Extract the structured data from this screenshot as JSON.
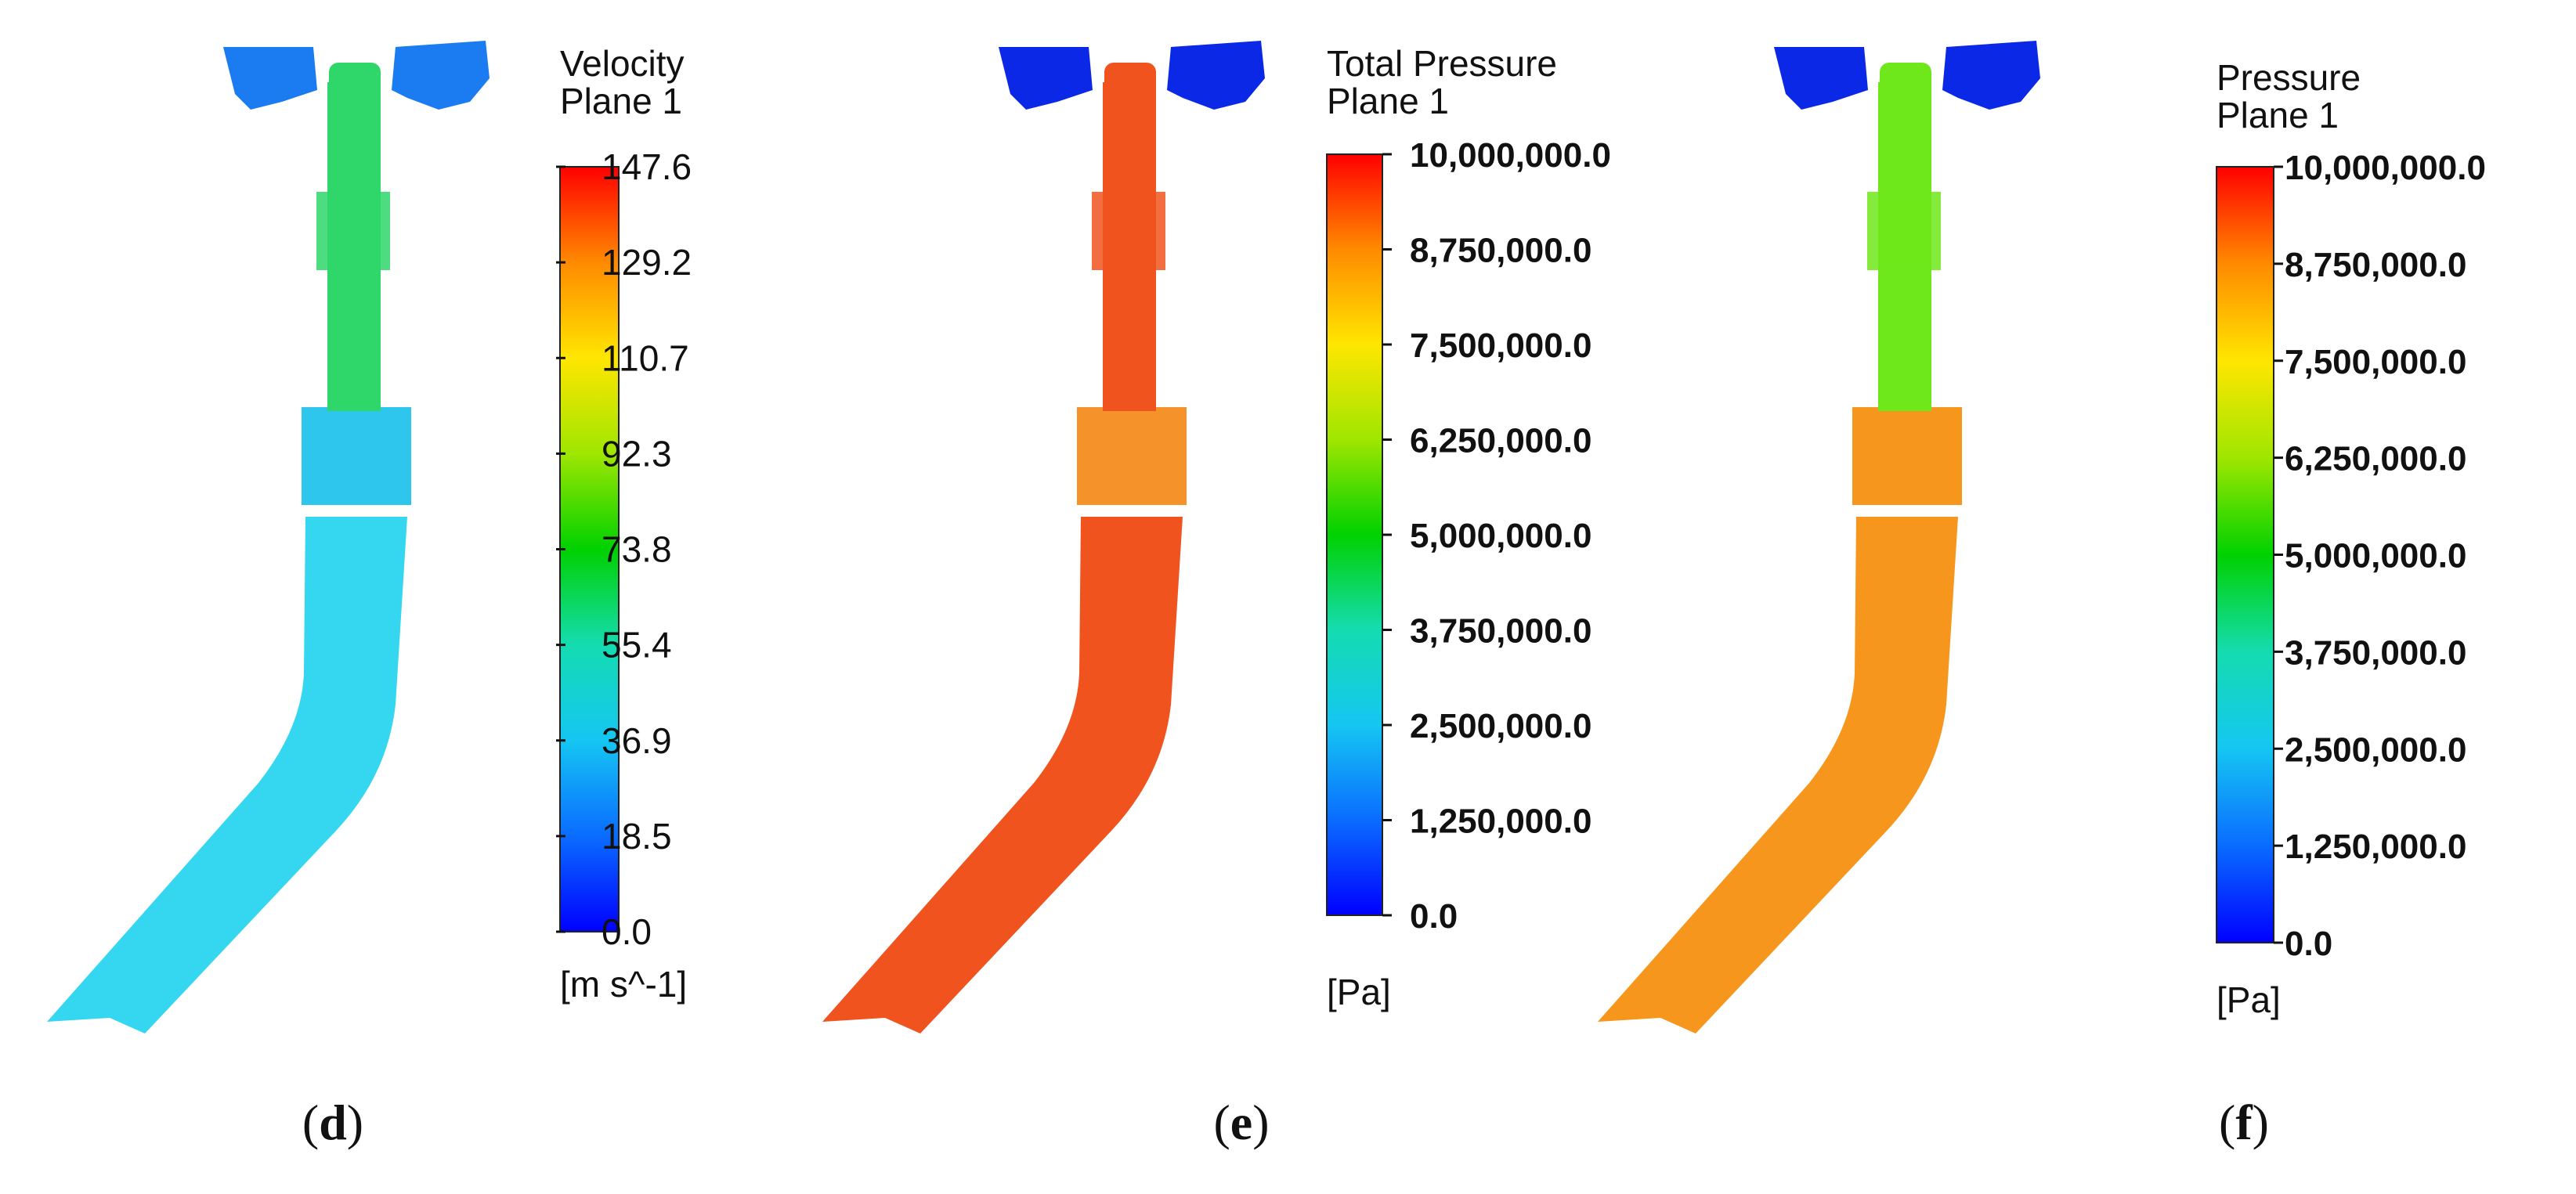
{
  "panels": [
    {
      "id": "d",
      "caption": "d",
      "title": "Velocity",
      "subtitle": "Plane 1",
      "unit": "[m s^-1]",
      "ticks": [
        "147.6",
        "129.2",
        "110.7",
        "92.3",
        "73.8",
        "55.4",
        "36.9",
        "18.5",
        "0.0"
      ],
      "bold_ticks": false,
      "field": {
        "head": "#1a7cf0",
        "throat": "#2fd66a",
        "collar": "#2fc6ee",
        "pipe": "#35d7f0"
      }
    },
    {
      "id": "e",
      "caption": "e",
      "title": "Total Pressure",
      "subtitle": "Plane 1",
      "unit": "[Pa]",
      "ticks": [
        "10,000,000.0",
        "8,750,000.0",
        "7,500,000.0",
        "6,250,000.0",
        "5,000,000.0",
        "3,750,000.0",
        "2,500,000.0",
        "1,250,000.0",
        "0.0"
      ],
      "bold_ticks": true,
      "field": {
        "head": "#0a28e6",
        "throat": "#f0531e",
        "collar": "#f5922a",
        "pipe": "#f0531e"
      }
    },
    {
      "id": "f",
      "caption": "f",
      "title": "Pressure",
      "subtitle": "Plane 1",
      "unit": "[Pa]",
      "ticks": [
        "10,000,000.0",
        "8,750,000.0",
        "7,500,000.0",
        "6,250,000.0",
        "5,000,000.0",
        "3,750,000.0",
        "2,500,000.0",
        "1,250,000.0",
        "0.0"
      ],
      "bold_ticks": true,
      "field": {
        "head": "#0a28e6",
        "throat": "#6ee81a",
        "collar": "#f7961c",
        "pipe": "#f7961c"
      }
    }
  ]
}
